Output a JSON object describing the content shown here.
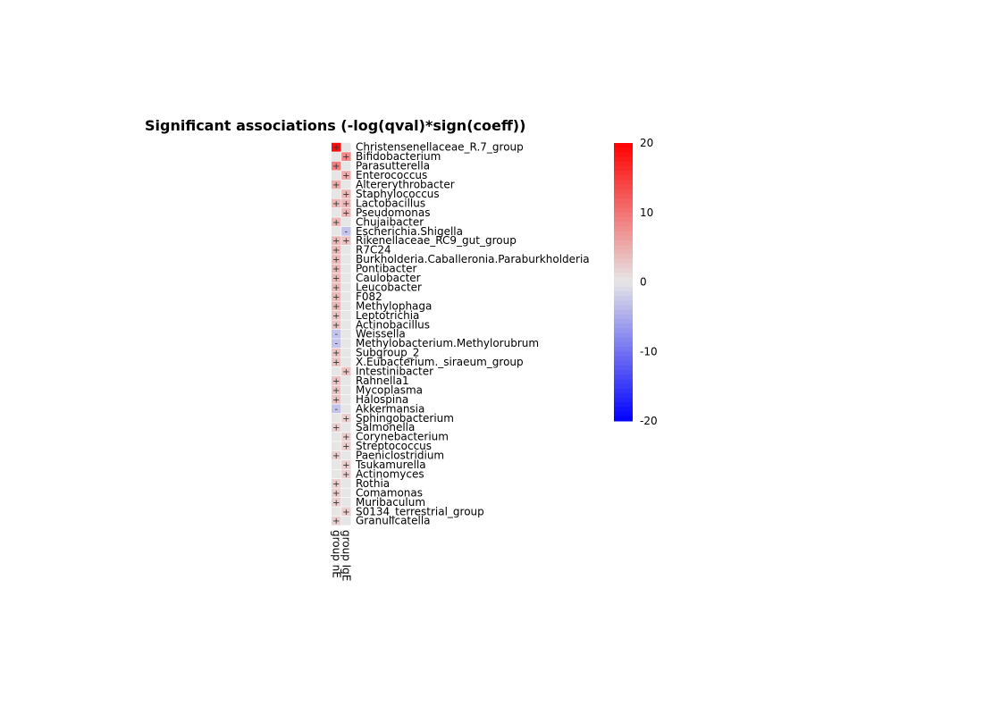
{
  "chart_data": {
    "type": "heatmap",
    "title": "Significant associations (-log(qval)*sign(coeff))",
    "columns": [
      "group nE",
      "group IgE"
    ],
    "rows": [
      "Christensenellaceae_R.7_group",
      "Bifidobacterium",
      "Parasutterella",
      "Enterococcus",
      "Altererythrobacter",
      "Staphylococcus",
      "Lactobacillus",
      "Pseudomonas",
      "Chujaibacter",
      "Escherichia.Shigella",
      "Rikenellaceae_RC9_gut_group",
      "R7C24",
      "Burkholderia.Caballeronia.Paraburkholderia",
      "Pontibacter",
      "Caulobacter",
      "Leucobacter",
      "F082",
      "Methylophaga",
      "Leptotrichia",
      "Actinobacillus",
      "Weissella",
      "Methylobacterium.Methylorubrum",
      "Subgroup_2",
      "X.Eubacterium._siraeum_group",
      "Intestinibacter",
      "Rahnella1",
      "Mycoplasma",
      "Halospina",
      "Akkermansia",
      "Sphingobacterium",
      "Salmonella",
      "Corynebacterium",
      "Streptococcus",
      "Paeniclostridium",
      "Tsukamurella",
      "Actinomyces",
      "Rothia",
      "Comamonas",
      "Muribaculum",
      "S0134_terrestrial_group",
      "Granulicatella"
    ],
    "values": [
      [
        19,
        0
      ],
      [
        0,
        8
      ],
      [
        9,
        0
      ],
      [
        0,
        5
      ],
      [
        5,
        0
      ],
      [
        0,
        4
      ],
      [
        4,
        4
      ],
      [
        0,
        4
      ],
      [
        4,
        0
      ],
      [
        0,
        -3
      ],
      [
        4,
        3
      ],
      [
        4,
        0
      ],
      [
        4,
        0
      ],
      [
        4,
        0
      ],
      [
        4,
        0
      ],
      [
        4,
        0
      ],
      [
        4,
        0
      ],
      [
        4,
        0
      ],
      [
        3,
        0
      ],
      [
        3,
        0
      ],
      [
        -3,
        0
      ],
      [
        -3,
        0
      ],
      [
        3,
        0
      ],
      [
        3,
        0
      ],
      [
        0,
        3
      ],
      [
        3,
        0
      ],
      [
        3,
        0
      ],
      [
        3,
        0
      ],
      [
        -3,
        0
      ],
      [
        0,
        2
      ],
      [
        2,
        0
      ],
      [
        0,
        2
      ],
      [
        0,
        2
      ],
      [
        2,
        0
      ],
      [
        0,
        2
      ],
      [
        0,
        2
      ],
      [
        2,
        0
      ],
      [
        2,
        0
      ],
      [
        2,
        0
      ],
      [
        0,
        2
      ],
      [
        2,
        0
      ]
    ],
    "colorbar": {
      "min": -20,
      "max": 20,
      "ticks": [
        20,
        10,
        0,
        -10,
        -20
      ],
      "colors": {
        "low": "#0000ff",
        "mid": "#e6e6e6",
        "high": "#ff0000"
      }
    },
    "sign_marks": {
      "positive": "+",
      "negative": "-"
    }
  }
}
